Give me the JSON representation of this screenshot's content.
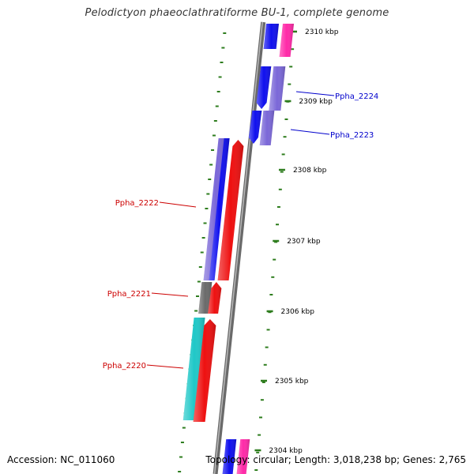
{
  "title": "Pelodictyon phaeoclathratiforme BU-1, complete genome",
  "footer": {
    "accession": "Accession: NC_011060",
    "topology": "Topology: circular; Length: 3,018,238 bp; Genes: 2,765"
  },
  "scale_labels": [
    "2310 kbp",
    "2309 kbp",
    "2308 kbp",
    "2307 kbp",
    "2306 kbp",
    "2305 kbp",
    "2304 kbp"
  ],
  "gene_labels": [
    {
      "text": "Ppha_2224",
      "color": "#0000cc"
    },
    {
      "text": "Ppha_2223",
      "color": "#0000cc"
    },
    {
      "text": "Ppha_2222",
      "color": "#cc0000"
    },
    {
      "text": "Ppha_2221",
      "color": "#cc0000"
    },
    {
      "text": "Ppha_2220",
      "color": "#cc0000"
    }
  ],
  "colors": {
    "backbone": "#8a8a8a",
    "tick": "#2e7d1e",
    "blue": "#1010ee",
    "purple": "#7b68d8",
    "red": "#ee1010",
    "gray": "#6a6a6a",
    "cyan": "#20c8c8",
    "magenta": "#ff2aa8"
  }
}
